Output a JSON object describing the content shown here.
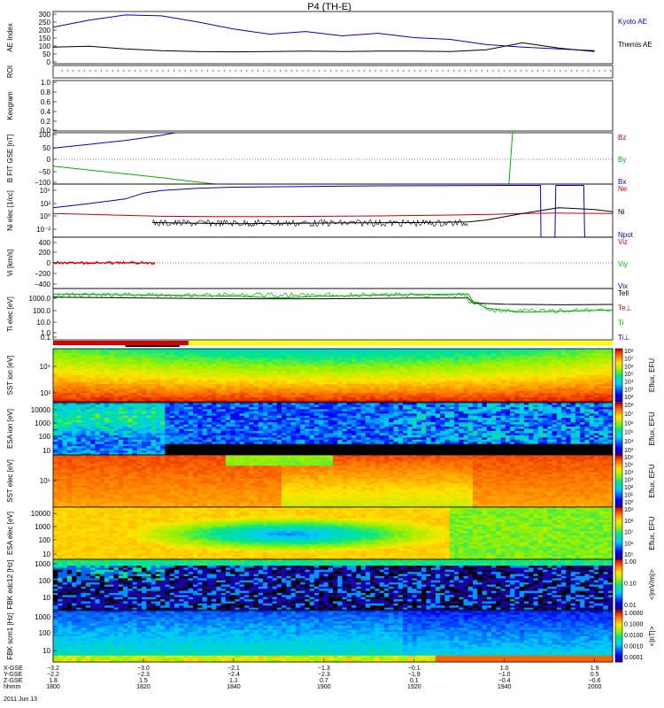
{
  "title": "P4 (TH-E)",
  "chart_data": [
    {
      "panel": "ae",
      "type": "line",
      "ylabel": "AE Index",
      "yticks": [
        "300",
        "250",
        "200",
        "150",
        "100",
        "50",
        "0"
      ],
      "ylim": [
        0,
        300
      ],
      "legend": [
        {
          "name": "Kyoto AE",
          "color": "#0000c8"
        },
        {
          "name": "Themis AE",
          "color": "#000000"
        }
      ],
      "series": [
        {
          "name": "Kyoto AE",
          "color": "#0000c8",
          "x": [
            0,
            4,
            8,
            12,
            16,
            20,
            24,
            28,
            32,
            36,
            40,
            44,
            48,
            52,
            56,
            60
          ],
          "values": [
            210,
            250,
            280,
            275,
            240,
            200,
            170,
            185,
            160,
            175,
            150,
            140,
            110,
            95,
            85,
            75
          ]
        },
        {
          "name": "Themis AE",
          "color": "#000000",
          "x": [
            0,
            4,
            8,
            12,
            16,
            20,
            24,
            28,
            32,
            36,
            40,
            44,
            48,
            52,
            56,
            60
          ],
          "values": [
            95,
            100,
            85,
            75,
            70,
            68,
            70,
            72,
            70,
            72,
            72,
            70,
            80,
            120,
            90,
            70
          ]
        }
      ]
    },
    {
      "panel": "roi",
      "type": "scatter",
      "ylabel": "ROI",
      "description_dots": "dotted"
    },
    {
      "panel": "keogram",
      "type": "line",
      "ylabel": "Keogram",
      "yticks": [
        "1.0",
        "0.8",
        "0.6",
        "0.4",
        "0.2",
        "0.0"
      ],
      "ylim": [
        0,
        1
      ]
    },
    {
      "panel": "bfit",
      "type": "line",
      "ylabel": "B FIT GSE [nT]",
      "yticks": [
        "100",
        "50",
        "0",
        "−50",
        "−100"
      ],
      "ylim": [
        -100,
        100
      ],
      "legend": [
        {
          "name": "Bz",
          "color": "#c80000"
        },
        {
          "name": "By",
          "color": "#00b400"
        },
        {
          "name": "Bx",
          "color": "#0000c8"
        }
      ],
      "series": [
        {
          "name": "Bx",
          "color": "#0000c8",
          "x": [
            0,
            4,
            8,
            12,
            13.5
          ],
          "values": [
            40,
            55,
            70,
            90,
            100
          ]
        },
        {
          "name": "By",
          "color": "#00b400",
          "x": [
            0,
            4,
            8,
            12,
            16,
            18
          ],
          "values": [
            -30,
            -45,
            -60,
            -75,
            -92,
            -100
          ]
        },
        {
          "name": "By",
          "color": "#00b400",
          "x": [
            50.5,
            50.9
          ],
          "values": [
            -100,
            100
          ]
        }
      ]
    },
    {
      "panel": "ni",
      "type": "line",
      "ylabel": "Ni elec [1/cc]",
      "yticks": [
        "10⁴",
        "10²",
        "10⁰",
        "10⁻²"
      ],
      "ylim": [
        0.0001,
        100000
      ],
      "log": true,
      "legend": [
        {
          "name": "Ne",
          "color": "#c80000"
        },
        {
          "name": "Ni",
          "color": "#000000"
        },
        {
          "name": "Npot",
          "color": "#0000c8"
        }
      ],
      "series": [
        {
          "name": "Npot",
          "color": "#0000c8",
          "x": [
            0,
            4,
            8,
            10,
            12,
            16,
            20,
            28,
            36,
            44,
            50,
            54,
            54.05,
            55.6,
            55.7,
            58.8,
            58.9,
            62
          ],
          "values": [
            10,
            50,
            300,
            3000,
            8000,
            20000,
            30000,
            40000,
            50000,
            55000,
            60000,
            60000,
            0.0001,
            0.0001,
            60000,
            60000,
            0.0001,
            0.0001
          ]
        },
        {
          "name": "Ne",
          "color": "#c80000",
          "x": [
            0,
            6,
            12,
            18,
            24,
            30,
            36,
            42,
            48,
            52,
            56,
            62
          ],
          "values": [
            1,
            0.6,
            0.35,
            0.3,
            0.3,
            0.35,
            0.4,
            0.5,
            0.7,
            1,
            1.2,
            1
          ]
        },
        {
          "name": "Ni",
          "color": "#000000",
          "x": [
            11,
            20,
            30,
            40,
            46,
            48,
            52,
            56,
            60,
            62
          ],
          "values": [
            0.03,
            0.02,
            0.025,
            0.03,
            0.04,
            0.08,
            1,
            10,
            5,
            2
          ]
        }
      ]
    },
    {
      "panel": "vi",
      "type": "line",
      "ylabel": "Vi [km/s]",
      "yticks": [
        "400",
        "200",
        "0",
        "−200",
        "−400"
      ],
      "ylim": [
        -500,
        500
      ],
      "legend": [
        {
          "name": "Viz",
          "color": "#c80000"
        },
        {
          "name": "Viy",
          "color": "#00b400"
        },
        {
          "name": "Vix",
          "color": "#0000c8"
        }
      ],
      "series": [
        {
          "name": "Viz",
          "color": "#c80000",
          "x": [
            0,
            11.3
          ],
          "values": [
            0,
            0
          ]
        }
      ]
    },
    {
      "panel": "ti",
      "type": "line",
      "ylabel": "Ti elec [eV]",
      "yticks": [
        "1000.0",
        "100.0",
        "10.0",
        "1.0",
        "0.1"
      ],
      "ylim": [
        0.05,
        5000
      ],
      "log": true,
      "legend": [
        {
          "name": "Tell",
          "color": "#000000"
        },
        {
          "name": "Te⊥",
          "color": "#c80000"
        },
        {
          "name": "Ti",
          "color": "#00b400"
        },
        {
          "name": "Ti⊥",
          "color": "#0000c8"
        }
      ],
      "series": [
        {
          "name": "Ti",
          "color": "#00b400",
          "x": [
            0,
            10,
            20,
            25,
            30,
            40,
            46,
            46.5,
            48,
            52,
            56,
            62
          ],
          "values": [
            1500,
            1200,
            900,
            600,
            900,
            1300,
            1500,
            300,
            60,
            25,
            30,
            40
          ]
        },
        {
          "name": "Tell",
          "color": "#000000",
          "x": [
            0,
            10,
            20,
            30,
            40,
            46,
            46.5,
            50,
            56,
            62
          ],
          "values": [
            700,
            600,
            500,
            500,
            600,
            600,
            200,
            150,
            130,
            140
          ]
        }
      ]
    },
    {
      "panel": "sst_ion",
      "type": "heatmap",
      "ylabel": "SST ion [eV]",
      "yticks": [
        "10⁴",
        "10²"
      ],
      "colorbar_label": "Eflux, EFU",
      "colorbar_ticks": [
        "10⁸",
        "10⁷",
        "10⁶",
        "10⁵",
        "10⁴",
        "10³",
        "10²"
      ]
    },
    {
      "panel": "esa_ion",
      "type": "heatmap",
      "ylabel": "ESA ion [eV]",
      "yticks": [
        "10000",
        "1000",
        "100",
        "10"
      ],
      "colorbar_label": "Eflux, EFU",
      "colorbar_ticks": [
        "10⁸",
        "10⁷",
        "10⁶",
        "10⁵",
        "10⁴",
        "10³"
      ]
    },
    {
      "panel": "sst_elec",
      "type": "heatmap",
      "ylabel": "SST elec [eV]",
      "yticks": [
        "10⁵"
      ],
      "colorbar_label": "Eflux, EFU",
      "colorbar_ticks": [
        "10⁶",
        "10⁵",
        "10⁴",
        "10³",
        "10²",
        "10¹",
        "10⁰"
      ]
    },
    {
      "panel": "esa_elec",
      "type": "heatmap",
      "ylabel": "ESA elec [eV]",
      "yticks": [
        "10000",
        "1000",
        "100",
        "10"
      ],
      "colorbar_label": "Eflux, EFU",
      "colorbar_ticks": [
        "10⁹",
        "10⁸",
        "10⁷",
        "10⁶",
        "10⁵"
      ]
    },
    {
      "panel": "fbk_e",
      "type": "heatmap",
      "ylabel": "FBK edc12 [Hz]",
      "yticks": [
        "1000",
        "100",
        "10"
      ],
      "colorbar_label": "<|mV/m|>",
      "colorbar_ticks": [
        "1.00",
        "0.10",
        "0.01"
      ]
    },
    {
      "panel": "fbk_b",
      "type": "heatmap",
      "ylabel": "FBK scm1 [Hz]",
      "yticks": [
        "1000",
        "100",
        "10"
      ],
      "colorbar_label": "<|nT|>",
      "colorbar_ticks": [
        "1.0000",
        "0.1000",
        "0.0100",
        "0.0010",
        "0.0001"
      ]
    }
  ],
  "xaxis": {
    "row_labels": [
      "X-GSE",
      "Y-GSE",
      "Z-GSE",
      "hhmm"
    ],
    "date": "2011 Jun 13",
    "ticks": [
      {
        "x": 0,
        "vals": [
          "−3.2",
          "−2.2",
          "1.8",
          "1800"
        ]
      },
      {
        "x": 10,
        "vals": [
          "−3.0",
          "−2.3",
          "1.5",
          "1820"
        ]
      },
      {
        "x": 20,
        "vals": [
          "−2.1",
          "−2.4",
          "1.1",
          "1840"
        ]
      },
      {
        "x": 30,
        "vals": [
          "−1.3",
          "−2.3",
          "0.7",
          "1900"
        ]
      },
      {
        "x": 40,
        "vals": [
          "−0.1",
          "−1.9",
          "0.1",
          "1920"
        ]
      },
      {
        "x": 50,
        "vals": [
          "1.0",
          "−1.0",
          "−0.4",
          "1940"
        ]
      },
      {
        "x": 60,
        "vals": [
          "1.9",
          "0.5",
          "−0.6",
          "2000"
        ]
      }
    ]
  }
}
